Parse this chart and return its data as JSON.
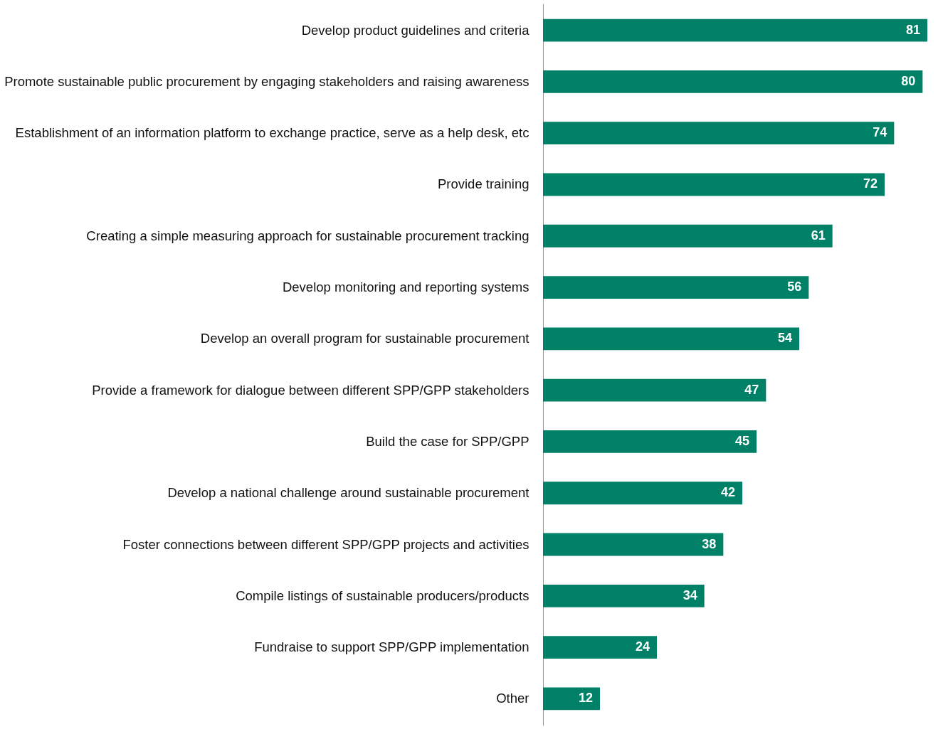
{
  "chart_data": {
    "type": "bar",
    "orientation": "horizontal",
    "categories": [
      "Develop product guidelines and criteria",
      "Promote sustainable public procurement by engaging stakeholders and raising awareness",
      "Establishment of an information platform to exchange practice, serve as a help desk, etc",
      "Provide training",
      "Creating a simple measuring approach for sustainable procurement tracking",
      "Develop monitoring and reporting systems",
      "Develop an overall program for sustainable procurement",
      "Provide a framework for dialogue between different SPP/GPP stakeholders",
      "Build the case for SPP/GPP",
      "Develop a national challenge around sustainable procurement",
      "Foster connections between different SPP/GPP projects and activities",
      "Compile listings of sustainable producers/products",
      "Fundraise to support SPP/GPP implementation",
      "Other"
    ],
    "values": [
      81,
      80,
      74,
      72,
      61,
      56,
      54,
      47,
      45,
      42,
      38,
      34,
      24,
      12
    ],
    "color": "#008066",
    "xlim": [
      0,
      81
    ],
    "data_labels": true,
    "tick_labels": "y"
  }
}
